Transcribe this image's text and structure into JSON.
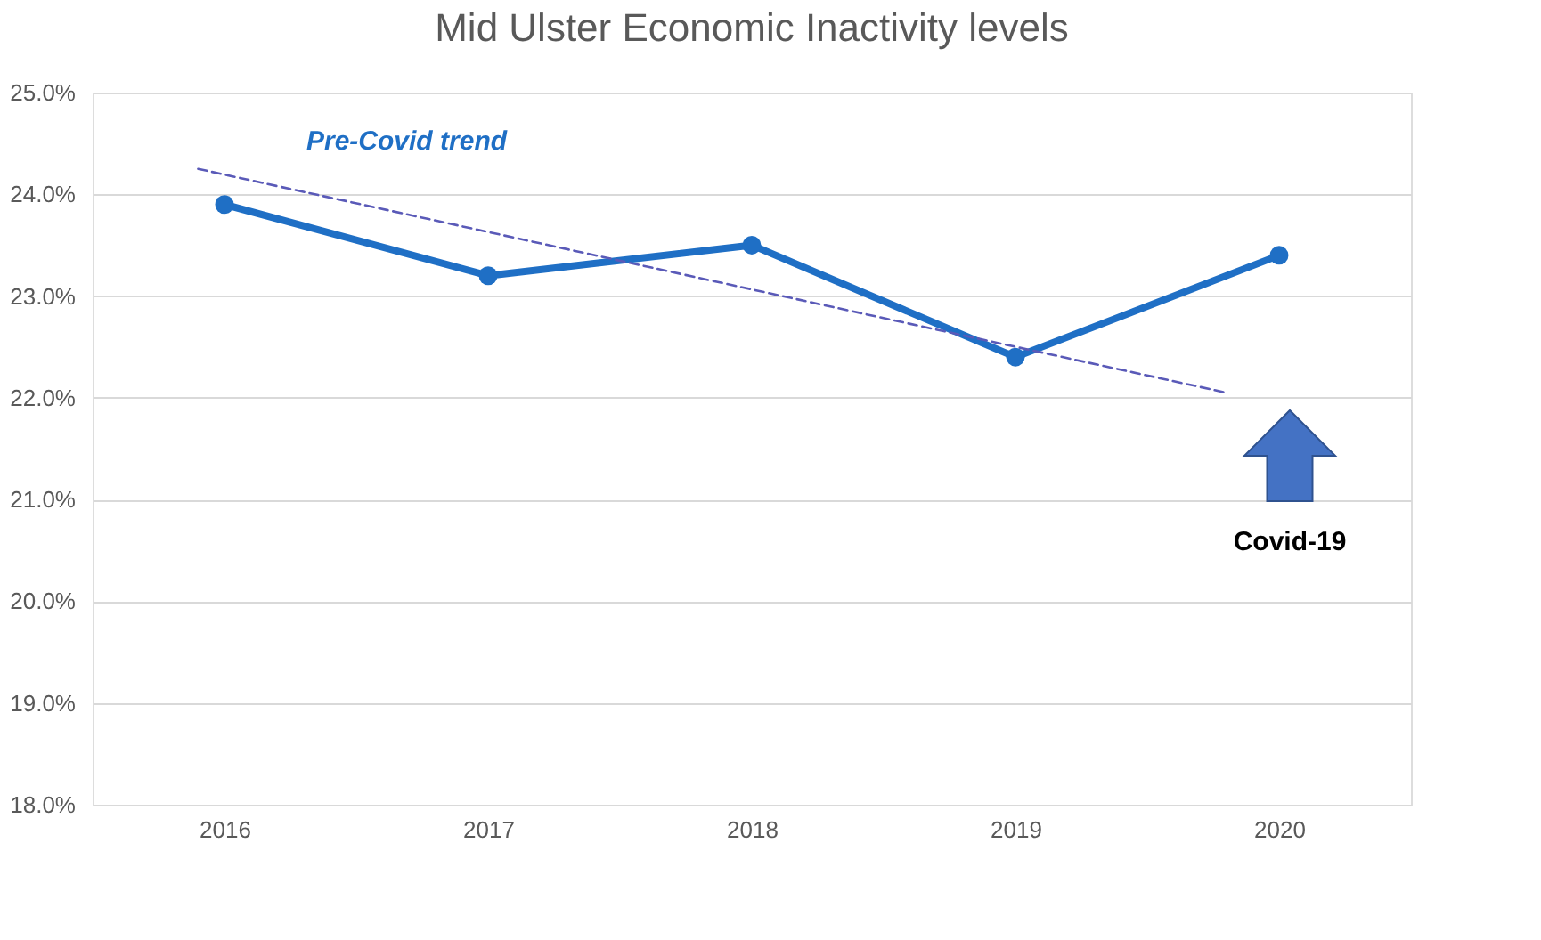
{
  "chart_data": {
    "type": "line",
    "title": "Mid Ulster Economic Inactivity levels",
    "x": [
      2016,
      2017,
      2018,
      2019,
      2020
    ],
    "xlim": [
      2015.5,
      2020.5
    ],
    "xticks": [
      2016,
      2017,
      2018,
      2019,
      2020
    ],
    "ylim": [
      18,
      25
    ],
    "yticks": [
      {
        "value": 18,
        "label": "18.0%"
      },
      {
        "value": 19,
        "label": "19.0%"
      },
      {
        "value": 20,
        "label": "20.0%"
      },
      {
        "value": 21,
        "label": "21.0%"
      },
      {
        "value": 22,
        "label": "22.0%"
      },
      {
        "value": 23,
        "label": "23.0%"
      },
      {
        "value": 24,
        "label": "24.0%"
      },
      {
        "value": 25,
        "label": "25.0%"
      }
    ],
    "grid": "y",
    "series": [
      {
        "color": "#1f6fc5",
        "values": [
          23.9,
          23.2,
          23.5,
          22.4,
          23.4
        ],
        "marker": "circle",
        "line_style": "solid"
      },
      {
        "type": "line",
        "color": "#5a5ab8",
        "x": [
          2015.9,
          2019.8
        ],
        "values": [
          24.25,
          22.05
        ],
        "marker": "none",
        "line_style": "dashed"
      }
    ],
    "annotations": [
      "Pre-Covid trend",
      "Covid-19"
    ]
  }
}
